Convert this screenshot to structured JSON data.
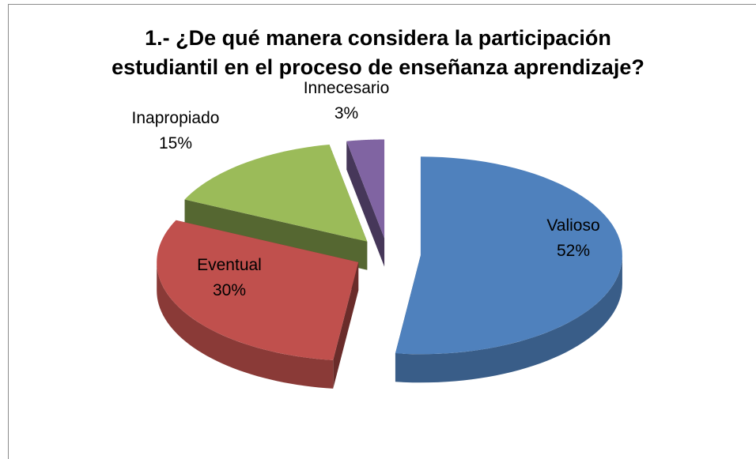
{
  "chart_data": {
    "type": "pie3d",
    "title": "1.- ¿De qué manera considera la participación estudiantil en el proceso de enseñanza aprendizaje?",
    "categories": [
      "Valioso",
      "Eventual",
      "Inapropiado",
      "Innecesario"
    ],
    "values": [
      52,
      30,
      15,
      3
    ],
    "value_labels": [
      "52%",
      "30%",
      "15%",
      "3%"
    ],
    "colors": [
      "#4f81bd",
      "#c0504d",
      "#9bbb59",
      "#8064a2"
    ],
    "exploded": true
  }
}
